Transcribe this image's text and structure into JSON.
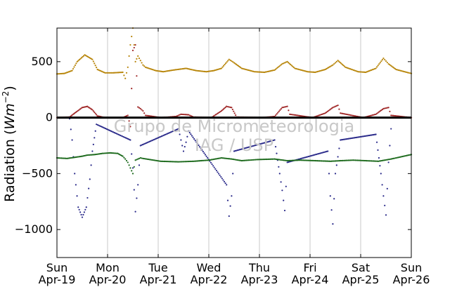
{
  "chart_data": {
    "type": "scatter",
    "ylabel_prefix": "Radiation (",
    "ylabel_unit_base": "Wm",
    "ylabel_unit_exp": "−2",
    "ylabel_suffix": ")",
    "ylim": [
      -1250,
      800
    ],
    "yticks": [
      {
        "value": 500,
        "label": "500"
      },
      {
        "value": 0,
        "label": "0"
      },
      {
        "value": -500,
        "label": "−500"
      },
      {
        "value": -1000,
        "label": "−1000"
      }
    ],
    "xlim": [
      "2020-04-19",
      "2020-04-26"
    ],
    "xticks": [
      {
        "day": "Sun",
        "date": "Apr-19"
      },
      {
        "day": "Mon",
        "date": "Apr-20"
      },
      {
        "day": "Tue",
        "date": "Apr-21"
      },
      {
        "day": "Wed",
        "date": "Apr-22"
      },
      {
        "day": "Thu",
        "date": "Apr-23"
      },
      {
        "day": "Fri",
        "date": "Apr-24"
      },
      {
        "day": "Sat",
        "date": "Apr-25"
      },
      {
        "day": "Sun",
        "date": "Apr-26"
      }
    ],
    "grid": "vertical",
    "zero_line": true,
    "watermark": [
      "Grupo de Micrometeorologia",
      "IAG / USP"
    ],
    "series": [
      {
        "color": "#b8860b",
        "points": [
          [
            0.0,
            390
          ],
          [
            0.15,
            395
          ],
          [
            0.3,
            420
          ],
          [
            0.4,
            500
          ],
          [
            0.55,
            560
          ],
          [
            0.7,
            520
          ],
          [
            0.8,
            430
          ],
          [
            0.95,
            400
          ],
          [
            1.1,
            400
          ],
          [
            1.3,
            405
          ],
          [
            1.35,
            350
          ],
          [
            1.4,
            450
          ],
          [
            1.45,
            650
          ],
          [
            1.5,
            800
          ],
          [
            1.55,
            500
          ],
          [
            1.6,
            550
          ],
          [
            1.7,
            470
          ],
          [
            1.75,
            450
          ],
          [
            1.95,
            420
          ],
          [
            2.1,
            410
          ],
          [
            2.3,
            425
          ],
          [
            2.55,
            440
          ],
          [
            2.75,
            420
          ],
          [
            2.95,
            410
          ],
          [
            3.1,
            420
          ],
          [
            3.25,
            440
          ],
          [
            3.4,
            520
          ],
          [
            3.5,
            490
          ],
          [
            3.65,
            440
          ],
          [
            3.9,
            410
          ],
          [
            4.1,
            405
          ],
          [
            4.3,
            425
          ],
          [
            4.45,
            480
          ],
          [
            4.55,
            500
          ],
          [
            4.7,
            440
          ],
          [
            4.95,
            410
          ],
          [
            5.1,
            405
          ],
          [
            5.3,
            430
          ],
          [
            5.45,
            470
          ],
          [
            5.55,
            510
          ],
          [
            5.7,
            450
          ],
          [
            5.95,
            410
          ],
          [
            6.1,
            405
          ],
          [
            6.3,
            440
          ],
          [
            6.45,
            530
          ],
          [
            6.55,
            480
          ],
          [
            6.7,
            430
          ],
          [
            6.95,
            400
          ],
          [
            7.0,
            395
          ]
        ]
      },
      {
        "color": "#a02828",
        "points": [
          [
            0.0,
            0
          ],
          [
            0.25,
            5
          ],
          [
            0.35,
            40
          ],
          [
            0.5,
            90
          ],
          [
            0.6,
            100
          ],
          [
            0.7,
            70
          ],
          [
            0.8,
            15
          ],
          [
            0.95,
            0
          ],
          [
            1.3,
            0
          ],
          [
            1.4,
            20
          ],
          [
            1.45,
            -80
          ],
          [
            1.5,
            600
          ],
          [
            1.55,
            650
          ],
          [
            1.6,
            95
          ],
          [
            1.65,
            80
          ],
          [
            1.7,
            60
          ],
          [
            1.75,
            20
          ],
          [
            2.05,
            0
          ],
          [
            2.35,
            10
          ],
          [
            2.45,
            30
          ],
          [
            2.6,
            25
          ],
          [
            2.7,
            5
          ],
          [
            3.05,
            0
          ],
          [
            3.25,
            60
          ],
          [
            3.35,
            100
          ],
          [
            3.45,
            90
          ],
          [
            3.55,
            5
          ],
          [
            4.05,
            0
          ],
          [
            4.3,
            10
          ],
          [
            4.45,
            90
          ],
          [
            4.55,
            100
          ],
          [
            4.6,
            30
          ],
          [
            5.05,
            0
          ],
          [
            5.3,
            40
          ],
          [
            5.45,
            90
          ],
          [
            5.55,
            110
          ],
          [
            5.6,
            40
          ],
          [
            6.05,
            0
          ],
          [
            6.3,
            30
          ],
          [
            6.45,
            80
          ],
          [
            6.55,
            90
          ],
          [
            6.6,
            20
          ],
          [
            7.0,
            0
          ]
        ]
      },
      {
        "color": "#2a2a8a",
        "points": [
          [
            0.25,
            -10
          ],
          [
            0.3,
            -200
          ],
          [
            0.35,
            -500
          ],
          [
            0.42,
            -800
          ],
          [
            0.5,
            -890
          ],
          [
            0.58,
            -800
          ],
          [
            0.65,
            -550
          ],
          [
            0.7,
            -300
          ],
          [
            0.78,
            -60
          ],
          [
            1.45,
            -200
          ],
          [
            1.5,
            -450
          ],
          [
            1.55,
            -840
          ],
          [
            1.6,
            -600
          ],
          [
            1.65,
            -250
          ],
          [
            2.4,
            -100
          ],
          [
            2.5,
            -300
          ],
          [
            2.55,
            -220
          ],
          [
            2.6,
            -120
          ],
          [
            3.35,
            -600
          ],
          [
            3.4,
            -880
          ],
          [
            3.45,
            -700
          ],
          [
            3.5,
            -300
          ],
          [
            4.3,
            -200
          ],
          [
            4.4,
            -500
          ],
          [
            4.45,
            -650
          ],
          [
            4.5,
            -830
          ],
          [
            4.55,
            -400
          ],
          [
            5.35,
            -300
          ],
          [
            5.4,
            -700
          ],
          [
            5.45,
            -950
          ],
          [
            5.5,
            -500
          ],
          [
            5.6,
            -200
          ],
          [
            6.3,
            -150
          ],
          [
            6.4,
            -500
          ],
          [
            6.45,
            -700
          ],
          [
            6.5,
            -870
          ],
          [
            6.55,
            -400
          ],
          [
            6.6,
            -100
          ]
        ]
      },
      {
        "color": "#1e6b1e",
        "points": [
          [
            0.0,
            -360
          ],
          [
            0.2,
            -365
          ],
          [
            0.35,
            -355
          ],
          [
            0.5,
            -345
          ],
          [
            0.6,
            -335
          ],
          [
            0.75,
            -330
          ],
          [
            0.9,
            -320
          ],
          [
            1.05,
            -315
          ],
          [
            1.2,
            -320
          ],
          [
            1.3,
            -345
          ],
          [
            1.35,
            -370
          ],
          [
            1.4,
            -400
          ],
          [
            1.45,
            -450
          ],
          [
            1.5,
            -500
          ],
          [
            1.55,
            -380
          ],
          [
            1.65,
            -360
          ],
          [
            1.7,
            -365
          ],
          [
            2.05,
            -390
          ],
          [
            2.4,
            -395
          ],
          [
            2.7,
            -390
          ],
          [
            3.0,
            -380
          ],
          [
            3.25,
            -360
          ],
          [
            3.45,
            -370
          ],
          [
            3.65,
            -385
          ],
          [
            3.95,
            -375
          ],
          [
            4.3,
            -370
          ],
          [
            4.55,
            -385
          ],
          [
            4.8,
            -380
          ],
          [
            5.1,
            -385
          ],
          [
            5.4,
            -390
          ],
          [
            5.6,
            -385
          ],
          [
            5.85,
            -380
          ],
          [
            6.1,
            -385
          ],
          [
            6.35,
            -390
          ],
          [
            6.6,
            -370
          ],
          [
            6.85,
            -345
          ],
          [
            7.0,
            -330
          ]
        ]
      }
    ]
  }
}
